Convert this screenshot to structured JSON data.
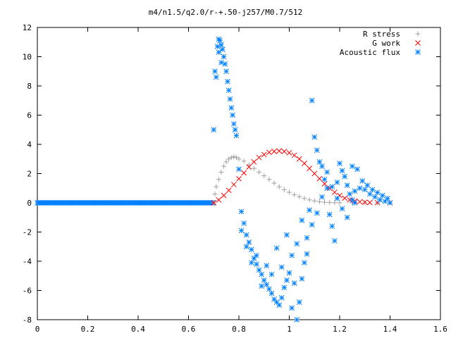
{
  "chart_data": {
    "type": "scatter",
    "title": "m4/n1.5/q2.0/r-+.50-j257/M0.7/512",
    "xlabel": "",
    "ylabel": "",
    "xlim": [
      0,
      1.6
    ],
    "ylim": [
      -8,
      12
    ],
    "xticks": [
      "0",
      "0.2",
      "0.4",
      "0.6",
      "0.8",
      "1",
      "1.2",
      "1.4",
      "1.6"
    ],
    "yticks": [
      "12",
      "10",
      "8",
      "6",
      "4",
      "2",
      "0",
      "-2",
      "-4",
      "-6",
      "-8"
    ],
    "grid": false,
    "legend_position": "top-right",
    "series": [
      {
        "name": "R stress",
        "marker": "+",
        "color": "#a0a0a0",
        "points": [
          [
            0.7,
            0.0
          ],
          [
            0.705,
            0.6
          ],
          [
            0.71,
            1.1
          ],
          [
            0.72,
            1.6
          ],
          [
            0.73,
            2.1
          ],
          [
            0.74,
            2.5
          ],
          [
            0.75,
            2.8
          ],
          [
            0.76,
            3.0
          ],
          [
            0.77,
            3.1
          ],
          [
            0.78,
            3.15
          ],
          [
            0.79,
            3.1
          ],
          [
            0.8,
            3.0
          ],
          [
            0.82,
            2.85
          ],
          [
            0.84,
            2.6
          ],
          [
            0.86,
            2.35
          ],
          [
            0.88,
            2.1
          ],
          [
            0.9,
            1.85
          ],
          [
            0.92,
            1.6
          ],
          [
            0.94,
            1.35
          ],
          [
            0.96,
            1.1
          ],
          [
            0.98,
            0.9
          ],
          [
            1.0,
            0.72
          ],
          [
            1.02,
            0.55
          ],
          [
            1.04,
            0.42
          ],
          [
            1.06,
            0.3
          ],
          [
            1.08,
            0.2
          ],
          [
            1.1,
            0.13
          ],
          [
            1.12,
            0.08
          ],
          [
            1.14,
            0.04
          ],
          [
            1.16,
            0.02
          ],
          [
            1.18,
            0.01
          ],
          [
            1.2,
            0.0
          ],
          [
            1.25,
            0.0
          ],
          [
            1.3,
            0.0
          ],
          [
            1.35,
            0.0
          ],
          [
            1.4,
            0.0
          ]
        ]
      },
      {
        "name": "G work",
        "marker": "x",
        "color": "#ff0000",
        "points": [
          [
            0.7,
            0.0
          ],
          [
            0.72,
            0.2
          ],
          [
            0.74,
            0.5
          ],
          [
            0.76,
            0.85
          ],
          [
            0.78,
            1.25
          ],
          [
            0.8,
            1.65
          ],
          [
            0.82,
            2.05
          ],
          [
            0.84,
            2.45
          ],
          [
            0.86,
            2.8
          ],
          [
            0.88,
            3.1
          ],
          [
            0.9,
            3.3
          ],
          [
            0.92,
            3.45
          ],
          [
            0.94,
            3.52
          ],
          [
            0.96,
            3.55
          ],
          [
            0.98,
            3.52
          ],
          [
            1.0,
            3.42
          ],
          [
            1.02,
            3.25
          ],
          [
            1.04,
            3.0
          ],
          [
            1.06,
            2.7
          ],
          [
            1.08,
            2.35
          ],
          [
            1.1,
            2.0
          ],
          [
            1.12,
            1.65
          ],
          [
            1.14,
            1.3
          ],
          [
            1.16,
            1.0
          ],
          [
            1.18,
            0.72
          ],
          [
            1.2,
            0.5
          ],
          [
            1.22,
            0.32
          ],
          [
            1.24,
            0.2
          ],
          [
            1.26,
            0.12
          ],
          [
            1.28,
            0.07
          ],
          [
            1.3,
            0.04
          ],
          [
            1.32,
            0.02
          ],
          [
            1.35,
            0.01
          ],
          [
            1.4,
            0.0
          ]
        ]
      },
      {
        "name": "Acoustic flux",
        "marker": "*",
        "color": "#0080ff",
        "points": [
          [
            0.7,
            5.0
          ],
          [
            0.705,
            9.0
          ],
          [
            0.71,
            8.6
          ],
          [
            0.715,
            10.7
          ],
          [
            0.72,
            11.2
          ],
          [
            0.725,
            11.1
          ],
          [
            0.73,
            10.8
          ],
          [
            0.735,
            10.5
          ],
          [
            0.74,
            10.0
          ],
          [
            0.745,
            9.5
          ],
          [
            0.75,
            9.0
          ],
          [
            0.755,
            8.3
          ],
          [
            0.76,
            7.7
          ],
          [
            0.765,
            7.1
          ],
          [
            0.77,
            6.5
          ],
          [
            0.775,
            6.0
          ],
          [
            0.78,
            5.4
          ],
          [
            0.785,
            5.0
          ],
          [
            0.79,
            4.6
          ],
          [
            0.8,
            2.3
          ],
          [
            0.81,
            -0.6
          ],
          [
            0.82,
            -1.4
          ],
          [
            0.83,
            -2.2
          ],
          [
            0.84,
            -2.7
          ],
          [
            0.85,
            -3.2
          ],
          [
            0.86,
            -3.8
          ],
          [
            0.87,
            -4.2
          ],
          [
            0.88,
            -4.6
          ],
          [
            0.89,
            -4.9
          ],
          [
            0.9,
            -5.3
          ],
          [
            0.91,
            -5.6
          ],
          [
            0.92,
            -5.9
          ],
          [
            0.93,
            -6.2
          ],
          [
            0.94,
            -6.6
          ],
          [
            0.95,
            -6.8
          ],
          [
            0.96,
            -7.0
          ],
          [
            0.97,
            -6.5
          ],
          [
            0.98,
            -5.8
          ],
          [
            0.99,
            -5.3
          ],
          [
            1.0,
            -4.8
          ],
          [
            1.01,
            -7.2
          ],
          [
            1.02,
            -5.5
          ],
          [
            1.03,
            -8.0
          ],
          [
            1.04,
            -6.8
          ],
          [
            1.05,
            -5.2
          ],
          [
            1.06,
            -4.1
          ],
          [
            1.07,
            -2.4
          ],
          [
            1.08,
            -0.5
          ],
          [
            1.09,
            7.0
          ],
          [
            1.1,
            4.5
          ],
          [
            1.11,
            3.6
          ],
          [
            1.12,
            2.8
          ],
          [
            1.13,
            2.5
          ],
          [
            1.14,
            1.6
          ],
          [
            1.15,
            1.0
          ],
          [
            1.16,
            -0.8
          ],
          [
            1.17,
            -1.6
          ],
          [
            1.18,
            -2.6
          ],
          [
            1.19,
            1.4
          ],
          [
            1.2,
            2.7
          ],
          [
            1.21,
            2.2
          ],
          [
            1.22,
            1.8
          ],
          [
            1.23,
            1.2
          ],
          [
            1.24,
            0.6
          ],
          [
            1.25,
            0.2
          ],
          [
            1.26,
            0.0
          ],
          [
            0.72,
            10.3
          ],
          [
            0.73,
            9.6
          ],
          [
            0.81,
            -1.9
          ],
          [
            0.83,
            -3.0
          ],
          [
            0.85,
            -4.1
          ],
          [
            0.87,
            -3.6
          ],
          [
            0.89,
            -5.7
          ],
          [
            0.91,
            -4.3
          ],
          [
            0.93,
            -4.9
          ],
          [
            0.95,
            -3.1
          ],
          [
            0.97,
            -4.4
          ],
          [
            0.99,
            -2.2
          ],
          [
            1.01,
            -3.6
          ],
          [
            1.03,
            -2.8
          ],
          [
            1.05,
            -1.2
          ],
          [
            1.07,
            -3.5
          ],
          [
            1.09,
            -1.5
          ],
          [
            1.11,
            -0.7
          ],
          [
            1.13,
            0.4
          ],
          [
            1.15,
            2.1
          ],
          [
            1.17,
            1.1
          ],
          [
            1.19,
            0.3
          ],
          [
            1.21,
            -0.4
          ],
          [
            1.23,
            -1.0
          ],
          [
            1.25,
            2.5
          ],
          [
            1.27,
            2.3
          ],
          [
            1.29,
            1.5
          ],
          [
            1.31,
            1.2
          ],
          [
            1.33,
            0.9
          ],
          [
            1.35,
            0.7
          ],
          [
            1.37,
            0.5
          ],
          [
            1.39,
            0.3
          ],
          [
            1.4,
            0.0
          ],
          [
            1.26,
            0.8
          ],
          [
            1.28,
            1.0
          ],
          [
            1.3,
            0.9
          ],
          [
            1.32,
            0.6
          ],
          [
            1.34,
            0.4
          ],
          [
            1.36,
            0.2
          ],
          [
            1.38,
            0.1
          ]
        ]
      }
    ],
    "baseline_series": {
      "series": "Acoustic flux",
      "y": 0,
      "x_range": [
        0,
        0.7
      ],
      "count": 150
    }
  }
}
